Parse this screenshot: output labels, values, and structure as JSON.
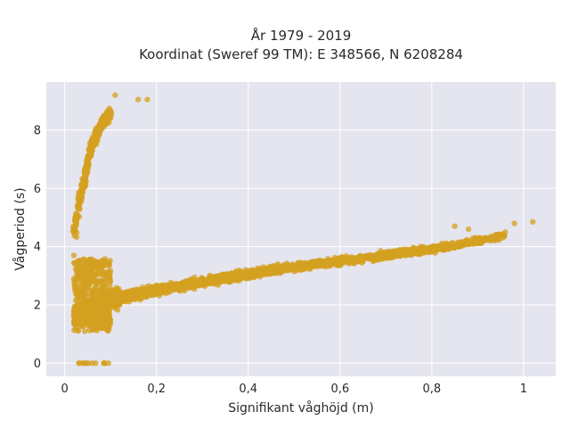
{
  "chart_data": {
    "type": "scatter",
    "title_lines": [
      "År 1979 - 2019",
      "Koordinat (Sweref 99 TM): E 348566, N 6208284"
    ],
    "xlabel": "Signifikant våghöjd (m)",
    "ylabel": "Vågperiod (s)",
    "xlim": [
      -0.04,
      1.07
    ],
    "ylim": [
      -0.45,
      9.65
    ],
    "x_ticks": [
      0,
      0.2,
      0.4,
      0.6,
      0.8,
      1
    ],
    "x_tick_labels": [
      "0",
      "0,2",
      "0,4",
      "0,6",
      "0,8",
      "1"
    ],
    "y_ticks": [
      0,
      2,
      4,
      6,
      8
    ],
    "y_tick_labels": [
      "0",
      "2",
      "4",
      "6",
      "8"
    ],
    "grid": true,
    "plot_background": "#e5e5ef",
    "point_color": "#d4a020",
    "clusters": {
      "main_trend": [
        [
          0.03,
          1.6
        ],
        [
          0.1,
          2.2
        ],
        [
          0.2,
          2.5
        ],
        [
          0.3,
          2.8
        ],
        [
          0.4,
          3.05
        ],
        [
          0.5,
          3.3
        ],
        [
          0.6,
          3.5
        ],
        [
          0.7,
          3.7
        ],
        [
          0.8,
          3.9
        ],
        [
          0.9,
          4.2
        ],
        [
          1.0,
          4.5
        ]
      ],
      "swell_branch": [
        [
          0.02,
          4.4
        ],
        [
          0.03,
          5.4
        ],
        [
          0.05,
          6.8
        ],
        [
          0.06,
          7.5
        ],
        [
          0.08,
          8.2
        ],
        [
          0.1,
          8.6
        ]
      ],
      "zero_period": [
        [
          0.03,
          0
        ],
        [
          0.1,
          0
        ]
      ],
      "outliers": [
        [
          0.16,
          9.05
        ],
        [
          0.18,
          9.05
        ],
        [
          0.11,
          9.2
        ],
        [
          0.98,
          4.8
        ],
        [
          1.02,
          4.85
        ],
        [
          0.96,
          4.5
        ],
        [
          0.88,
          4.6
        ],
        [
          0.85,
          4.7
        ],
        [
          0.02,
          3.7
        ],
        [
          0.03,
          3.1
        ],
        [
          0.02,
          2.9
        ]
      ]
    }
  }
}
